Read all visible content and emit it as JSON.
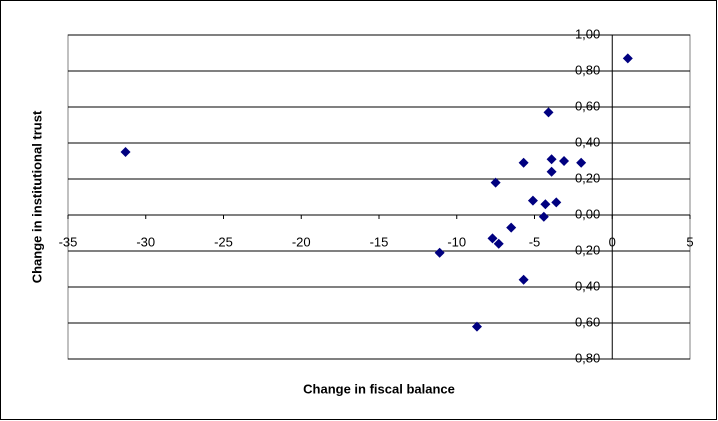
{
  "chart_data": {
    "type": "scatter",
    "x_label": "Change in fiscal balance",
    "y_label": "Change in institutional trust",
    "x": [
      1.0,
      -31.3,
      -4.1,
      -5.7,
      -3.9,
      -3.1,
      -2.0,
      -3.9,
      -7.5,
      -5.1,
      -4.3,
      -3.6,
      -4.4,
      -6.5,
      -7.7,
      -7.3,
      -11.1,
      -5.7,
      -8.7
    ],
    "values": [
      0.87,
      0.35,
      0.57,
      0.29,
      0.31,
      0.3,
      0.29,
      0.24,
      0.18,
      0.08,
      0.06,
      0.07,
      -0.01,
      -0.07,
      -0.13,
      -0.16,
      -0.21,
      -0.36,
      -0.62
    ],
    "color": "#000080",
    "xlim": [
      -35,
      5
    ],
    "xticks": [
      -35,
      -30,
      -25,
      -20,
      -15,
      -10,
      -5,
      0,
      5
    ],
    "ylim": [
      -0.8,
      1.0
    ],
    "yticks": [
      {
        "value": -0.8,
        "label": "-0,80"
      },
      {
        "value": -0.6,
        "label": "-0,60"
      },
      {
        "value": -0.4,
        "label": "-0,40"
      },
      {
        "value": -0.2,
        "label": "-0,20"
      },
      {
        "value": 0,
        "label": "0,00"
      },
      {
        "value": 0.2,
        "label": "0,20"
      },
      {
        "value": 0.4,
        "label": "0,40"
      },
      {
        "value": 0.6,
        "label": "0,60"
      },
      {
        "value": 0.8,
        "label": "0,80"
      },
      {
        "value": 1.0,
        "label": "1,00"
      }
    ],
    "grid": true
  }
}
